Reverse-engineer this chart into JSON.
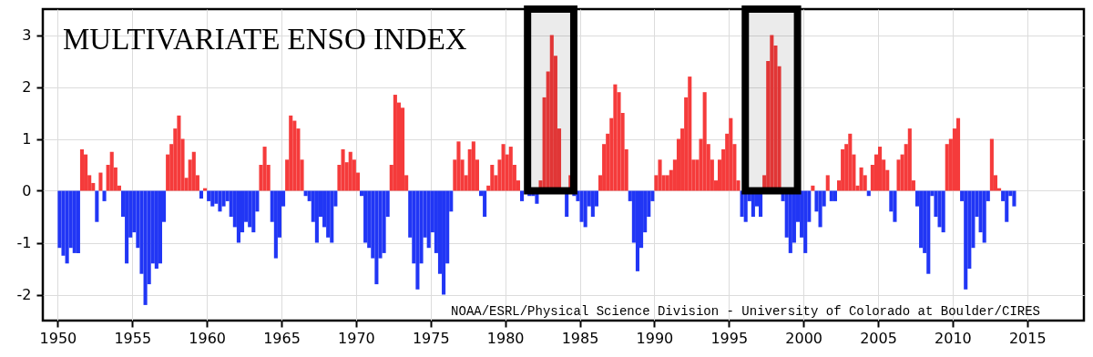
{
  "chart_data": {
    "type": "bar",
    "title": "MULTIVARIATE ENSO INDEX",
    "annotations": [
      "NOAA/ESRL/Physical Science Division - University of Colorado at Boulder/CIRES"
    ],
    "x": [
      1950,
      1950.25,
      1950.5,
      1950.75,
      1951,
      1951.25,
      1951.5,
      1951.75,
      1952,
      1952.25,
      1952.5,
      1952.75,
      1953,
      1953.25,
      1953.5,
      1953.75,
      1954,
      1954.25,
      1954.5,
      1954.75,
      1955,
      1955.25,
      1955.5,
      1955.75,
      1956,
      1956.25,
      1956.5,
      1956.75,
      1957,
      1957.25,
      1957.5,
      1957.75,
      1958,
      1958.25,
      1958.5,
      1958.75,
      1959,
      1959.25,
      1959.5,
      1959.75,
      1960,
      1960.25,
      1960.5,
      1960.75,
      1961,
      1961.25,
      1961.5,
      1961.75,
      1962,
      1962.25,
      1962.5,
      1962.75,
      1963,
      1963.25,
      1963.5,
      1963.75,
      1964,
      1964.25,
      1964.5,
      1964.75,
      1965,
      1965.25,
      1965.5,
      1965.75,
      1966,
      1966.25,
      1966.5,
      1966.75,
      1967,
      1967.25,
      1967.5,
      1967.75,
      1968,
      1968.25,
      1968.5,
      1968.75,
      1969,
      1969.25,
      1969.5,
      1969.75,
      1970,
      1970.25,
      1970.5,
      1970.75,
      1971,
      1971.25,
      1971.5,
      1971.75,
      1972,
      1972.25,
      1972.5,
      1972.75,
      1973,
      1973.25,
      1973.5,
      1973.75,
      1974,
      1974.25,
      1974.5,
      1974.75,
      1975,
      1975.25,
      1975.5,
      1975.75,
      1976,
      1976.25,
      1976.5,
      1976.75,
      1977,
      1977.25,
      1977.5,
      1977.75,
      1978,
      1978.25,
      1978.5,
      1978.75,
      1979,
      1979.25,
      1979.5,
      1979.75,
      1980,
      1980.25,
      1980.5,
      1980.75,
      1981,
      1981.25,
      1981.5,
      1981.75,
      1982,
      1982.25,
      1982.5,
      1982.75,
      1983,
      1983.25,
      1983.5,
      1983.75,
      1984,
      1984.25,
      1984.5,
      1984.75,
      1985,
      1985.25,
      1985.5,
      1985.75,
      1986,
      1986.25,
      1986.5,
      1986.75,
      1987,
      1987.25,
      1987.5,
      1987.75,
      1988,
      1988.25,
      1988.5,
      1988.75,
      1989,
      1989.25,
      1989.5,
      1989.75,
      1990,
      1990.25,
      1990.5,
      1990.75,
      1991,
      1991.25,
      1991.5,
      1991.75,
      1992,
      1992.25,
      1992.5,
      1992.75,
      1993,
      1993.25,
      1993.5,
      1993.75,
      1994,
      1994.25,
      1994.5,
      1994.75,
      1995,
      1995.25,
      1995.5,
      1995.75,
      1996,
      1996.25,
      1996.5,
      1996.75,
      1997,
      1997.25,
      1997.5,
      1997.75,
      1998,
      1998.25,
      1998.5,
      1998.75,
      1999,
      1999.25,
      1999.5,
      1999.75,
      2000,
      2000.25,
      2000.5,
      2000.75,
      2001,
      2001.25,
      2001.5,
      2001.75,
      2002,
      2002.25,
      2002.5,
      2002.75,
      2003,
      2003.25,
      2003.5,
      2003.75,
      2004,
      2004.25,
      2004.5,
      2004.75,
      2005,
      2005.25,
      2005.5,
      2005.75,
      2006,
      2006.25,
      2006.5,
      2006.75,
      2007,
      2007.25,
      2007.5,
      2007.75,
      2008,
      2008.25,
      2008.5,
      2008.75,
      2009,
      2009.25,
      2009.5,
      2009.75,
      2010,
      2010.25,
      2010.5,
      2010.75,
      2011,
      2011.25,
      2011.5,
      2011.75,
      2012,
      2012.25,
      2012.5,
      2012.75,
      2013,
      2013.25,
      2013.5,
      2013.75,
      2014
    ],
    "values": [
      -1.1,
      -1.25,
      -1.4,
      -1.1,
      -1.2,
      -1.2,
      0.8,
      0.7,
      0.3,
      0.15,
      -0.6,
      0.35,
      -0.2,
      0.5,
      0.75,
      0.45,
      0.1,
      -0.5,
      -1.4,
      -0.9,
      -0.8,
      -1.1,
      -1.6,
      -2.2,
      -1.8,
      -1.4,
      -1.5,
      -1.4,
      -0.6,
      0.7,
      0.9,
      1.2,
      1.45,
      1.0,
      0.25,
      0.6,
      0.75,
      0.3,
      -0.15,
      0.05,
      -0.2,
      -0.3,
      -0.25,
      -0.4,
      -0.3,
      -0.2,
      -0.5,
      -0.7,
      -1.0,
      -0.8,
      -0.6,
      -0.7,
      -0.8,
      -0.4,
      0.5,
      0.85,
      0.5,
      -0.6,
      -1.3,
      -0.9,
      -0.3,
      0.6,
      1.45,
      1.35,
      1.2,
      0.6,
      -0.1,
      -0.2,
      -0.6,
      -1.0,
      -0.5,
      -0.7,
      -0.9,
      -1.0,
      -0.3,
      0.5,
      0.8,
      0.55,
      0.75,
      0.6,
      0.35,
      -0.1,
      -1.0,
      -1.1,
      -1.3,
      -1.8,
      -1.3,
      -1.2,
      -0.5,
      0.5,
      1.85,
      1.7,
      1.6,
      0.3,
      -0.9,
      -1.4,
      -1.9,
      -1.4,
      -0.9,
      -1.1,
      -0.8,
      -1.2,
      -1.6,
      -2.0,
      -1.4,
      -0.4,
      0.6,
      0.95,
      0.6,
      0.3,
      0.8,
      0.95,
      0.6,
      -0.1,
      -0.5,
      0.1,
      0.5,
      0.3,
      0.6,
      0.9,
      0.7,
      0.85,
      0.5,
      0.2,
      -0.2,
      null,
      -0.1,
      -0.1,
      -0.25,
      0.2,
      1.8,
      2.3,
      3.0,
      2.6,
      1.2,
      null,
      -0.5,
      0.3,
      -0.1,
      -0.2,
      -0.6,
      -0.7,
      -0.3,
      -0.5,
      -0.3,
      0.3,
      0.9,
      1.1,
      1.4,
      2.05,
      1.9,
      1.5,
      0.8,
      -0.2,
      -1.0,
      -1.55,
      -1.1,
      -0.8,
      -0.5,
      -0.2,
      0.3,
      0.6,
      0.3,
      0.3,
      0.4,
      0.6,
      1.0,
      1.2,
      1.8,
      2.2,
      0.6,
      0.6,
      1.0,
      1.9,
      0.9,
      0.6,
      0.2,
      0.6,
      0.8,
      1.1,
      1.4,
      0.9,
      0.2,
      -0.5,
      -0.6,
      -0.2,
      -0.5,
      -0.3,
      -0.5,
      0.3,
      2.5,
      3.0,
      2.8,
      2.4,
      -0.2,
      -0.9,
      -1.2,
      -1.0,
      -0.6,
      -0.9,
      -1.2,
      -0.6,
      0.1,
      -0.4,
      -0.7,
      -0.3,
      0.3,
      -0.2,
      -0.2,
      0.2,
      0.8,
      0.9,
      1.1,
      0.7,
      0.1,
      0.45,
      0.3,
      -0.1,
      0.5,
      0.7,
      0.85,
      0.6,
      0.4,
      -0.4,
      -0.6,
      0.6,
      0.7,
      0.9,
      1.2,
      0.2,
      -0.3,
      -1.1,
      -1.2,
      -1.6,
      -0.1,
      -0.5,
      -0.7,
      -0.8,
      0.9,
      1.0,
      1.2,
      1.4,
      -0.2,
      -1.9,
      -1.5,
      -1.1,
      -0.5,
      -0.8,
      -1.0,
      -0.2,
      1.0,
      0.3,
      0.05,
      -0.2,
      -0.6,
      -0.1,
      -0.3
    ],
    "colors": [
      "#2136f5",
      "#2136f5",
      "#2136f5",
      "#2136f5",
      "#2136f5",
      "#2136f5",
      "#f53b3b",
      "#f53b3b",
      "#f53b3b",
      "#f53b3b",
      "#2136f5",
      "#f53b3b",
      "#2136f5",
      "#f53b3b",
      "#f53b3b",
      "#f53b3b",
      "#f53b3b",
      "#2136f5",
      "#2136f5",
      "#2136f5",
      "#2136f5",
      "#2136f5",
      "#2136f5",
      "#2136f5",
      "#2136f5",
      "#2136f5",
      "#2136f5",
      "#2136f5",
      "#2136f5",
      "#f53b3b",
      "#f53b3b",
      "#f53b3b",
      "#f53b3b",
      "#f53b3b",
      "#f53b3b",
      "#f53b3b",
      "#f53b3b",
      "#f53b3b",
      "#2136f5",
      "#f53b3b",
      "#2136f5",
      "#2136f5",
      "#2136f5",
      "#2136f5",
      "#2136f5",
      "#2136f5",
      "#2136f5",
      "#2136f5",
      "#2136f5",
      "#2136f5",
      "#2136f5",
      "#2136f5",
      "#2136f5",
      "#2136f5",
      "#f53b3b",
      "#f53b3b",
      "#f53b3b",
      "#2136f5",
      "#2136f5",
      "#2136f5",
      "#2136f5",
      "#f53b3b",
      "#f53b3b",
      "#f53b3b",
      "#f53b3b",
      "#f53b3b",
      "#2136f5",
      "#2136f5",
      "#2136f5",
      "#2136f5",
      "#2136f5",
      "#2136f5",
      "#2136f5",
      "#2136f5",
      "#2136f5",
      "#f53b3b",
      "#f53b3b",
      "#f53b3b",
      "#f53b3b",
      "#f53b3b",
      "#f53b3b",
      "#2136f5",
      "#2136f5",
      "#2136f5",
      "#2136f5",
      "#2136f5",
      "#2136f5",
      "#2136f5",
      "#2136f5",
      "#f53b3b",
      "#f53b3b",
      "#f53b3b",
      "#f53b3b",
      "#f53b3b",
      "#2136f5",
      "#2136f5",
      "#2136f5",
      "#2136f5",
      "#2136f5",
      "#2136f5",
      "#2136f5",
      "#2136f5",
      "#2136f5",
      "#2136f5",
      "#2136f5",
      "#2136f5",
      "#f53b3b",
      "#f53b3b",
      "#f53b3b",
      "#f53b3b",
      "#f53b3b",
      "#f53b3b",
      "#f53b3b",
      "#2136f5",
      "#2136f5",
      "#f53b3b",
      "#f53b3b",
      "#f53b3b",
      "#f53b3b",
      "#f53b3b",
      "#f53b3b",
      "#f53b3b",
      "#f53b3b",
      "#f53b3b",
      "#2136f5",
      "#f53b3b",
      "#2136f5",
      "#2136f5",
      "#2136f5",
      "#f53b3b",
      "#f53b3b",
      "#f53b3b",
      "#f53b3b",
      "#f53b3b",
      "#f53b3b",
      "#2136f5",
      "#2136f5",
      "#f53b3b",
      "#2136f5",
      "#2136f5",
      "#2136f5",
      "#2136f5",
      "#2136f5",
      "#2136f5",
      "#2136f5",
      "#f53b3b",
      "#f53b3b",
      "#f53b3b",
      "#f53b3b",
      "#f53b3b",
      "#f53b3b",
      "#f53b3b",
      "#f53b3b",
      "#2136f5",
      "#2136f5",
      "#2136f5",
      "#2136f5",
      "#2136f5",
      "#2136f5",
      "#2136f5",
      "#f53b3b",
      "#f53b3b",
      "#f53b3b",
      "#f53b3b",
      "#f53b3b",
      "#f53b3b",
      "#f53b3b",
      "#f53b3b",
      "#f53b3b",
      "#f53b3b",
      "#f53b3b",
      "#f53b3b",
      "#f53b3b",
      "#f53b3b",
      "#f53b3b",
      "#f53b3b",
      "#f53b3b",
      "#f53b3b",
      "#f53b3b",
      "#f53b3b",
      "#f53b3b",
      "#f53b3b",
      "#f53b3b",
      "#2136f5",
      "#2136f5",
      "#2136f5",
      "#2136f5",
      "#2136f5",
      "#2136f5",
      "#f53b3b",
      "#f53b3b",
      "#f53b3b",
      "#f53b3b",
      "#f53b3b",
      "#2136f5",
      "#2136f5",
      "#2136f5",
      "#2136f5",
      "#2136f5",
      "#2136f5",
      "#2136f5",
      "#2136f5",
      "#f53b3b",
      "#2136f5",
      "#2136f5",
      "#2136f5",
      "#f53b3b",
      "#2136f5",
      "#2136f5",
      "#f53b3b",
      "#f53b3b",
      "#f53b3b",
      "#f53b3b",
      "#f53b3b",
      "#f53b3b",
      "#f53b3b",
      "#f53b3b",
      "#2136f5",
      "#f53b3b",
      "#f53b3b",
      "#f53b3b",
      "#f53b3b",
      "#f53b3b",
      "#2136f5",
      "#2136f5",
      "#f53b3b",
      "#f53b3b",
      "#f53b3b",
      "#f53b3b",
      "#f53b3b",
      "#2136f5",
      "#2136f5",
      "#2136f5",
      "#2136f5",
      "#2136f5",
      "#2136f5",
      "#2136f5",
      "#2136f5",
      "#f53b3b",
      "#f53b3b",
      "#f53b3b",
      "#f53b3b",
      "#2136f5",
      "#2136f5",
      "#2136f5",
      "#2136f5",
      "#2136f5",
      "#2136f5",
      "#2136f5",
      "#2136f5",
      "#f53b3b",
      "#f53b3b",
      "#f53b3b",
      "#2136f5",
      "#2136f5",
      "#2136f5",
      "#2136f5"
    ],
    "xlim": [
      1949,
      2018.8
    ],
    "ylim": [
      -2.5,
      3.5
    ],
    "xticks": [
      1950,
      1955,
      1960,
      1965,
      1970,
      1975,
      1980,
      1985,
      1990,
      1995,
      2000,
      2005,
      2010,
      2015
    ],
    "yticks": [
      -2,
      -1,
      0,
      1,
      2,
      3
    ],
    "grid": true,
    "bands": [
      {
        "axis": "x",
        "from": 1981.5,
        "to": 1984.6,
        "color": "#000000"
      },
      {
        "axis": "x",
        "from": 1996.1,
        "to": 1999.6,
        "color": "#000000"
      }
    ]
  }
}
